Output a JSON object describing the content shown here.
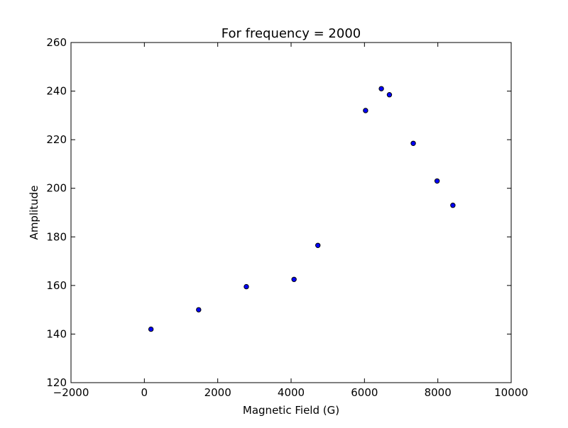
{
  "chart_data": {
    "type": "scatter",
    "title": "For frequency = 2000",
    "xlabel": "Magnetic Field (G)",
    "ylabel": "Amplitude",
    "xlim": [
      -2000,
      10000
    ],
    "ylim": [
      120,
      260
    ],
    "xticks": [
      -2000,
      0,
      2000,
      4000,
      6000,
      8000,
      10000
    ],
    "yticks": [
      120,
      140,
      160,
      180,
      200,
      220,
      240,
      260
    ],
    "grid": false,
    "marker_color": "#0000ff",
    "marker_edge_color": "#000000",
    "points": [
      {
        "x": 180,
        "y": 142
      },
      {
        "x": 1480,
        "y": 150
      },
      {
        "x": 2780,
        "y": 159.5
      },
      {
        "x": 4080,
        "y": 162.5
      },
      {
        "x": 4730,
        "y": 176.5
      },
      {
        "x": 6030,
        "y": 232
      },
      {
        "x": 6460,
        "y": 241
      },
      {
        "x": 6680,
        "y": 238.5
      },
      {
        "x": 7330,
        "y": 218.5
      },
      {
        "x": 7980,
        "y": 203
      },
      {
        "x": 8410,
        "y": 193
      }
    ]
  }
}
